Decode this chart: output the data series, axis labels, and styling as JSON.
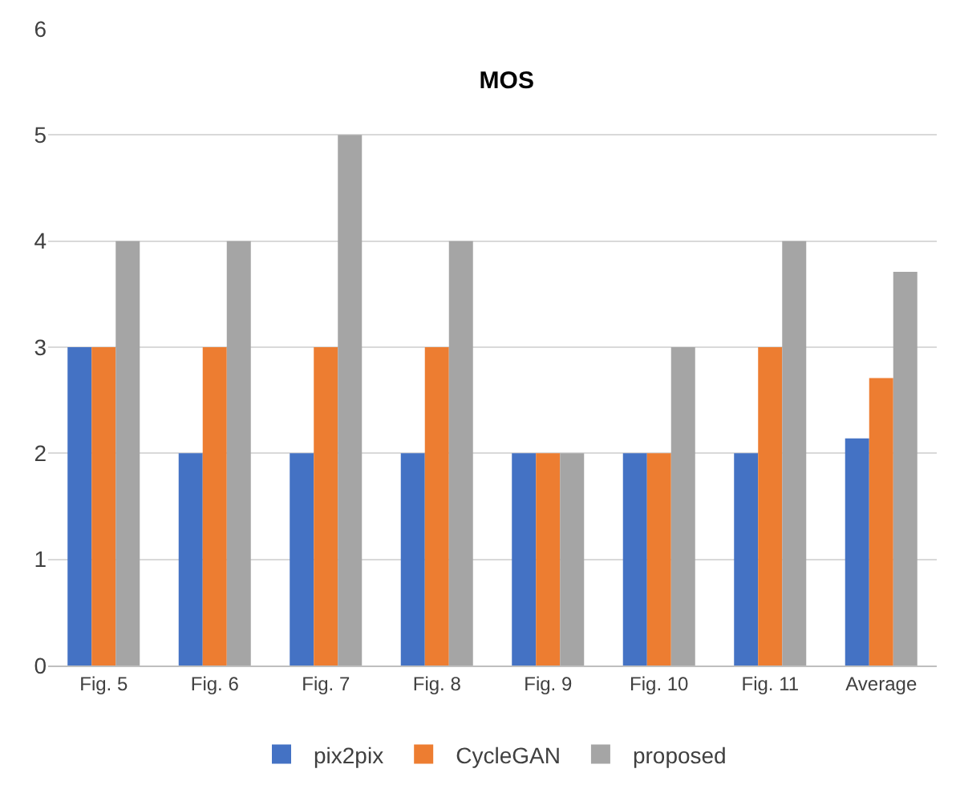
{
  "chart_data": {
    "type": "bar",
    "title": "MOS",
    "categories": [
      "Fig. 5",
      "Fig. 6",
      "Fig. 7",
      "Fig. 8",
      "Fig. 9",
      "Fig. 10",
      "Fig. 11",
      "Average"
    ],
    "series": [
      {
        "name": "pix2pix",
        "color": "#4472c4",
        "values": [
          3,
          2,
          2,
          2,
          2,
          2,
          2,
          2.14
        ]
      },
      {
        "name": "CycleGAN",
        "color": "#ed7d31",
        "values": [
          3,
          3,
          3,
          3,
          2,
          2,
          3,
          2.71
        ]
      },
      {
        "name": "proposed",
        "color": "#a5a5a5",
        "values": [
          4,
          4,
          5,
          4,
          2,
          3,
          4,
          3.71
        ]
      }
    ],
    "ylim": [
      0,
      6
    ],
    "yticks": [
      0,
      1,
      2,
      3,
      4,
      5,
      6
    ],
    "grid": "y",
    "legend": "bottom"
  }
}
